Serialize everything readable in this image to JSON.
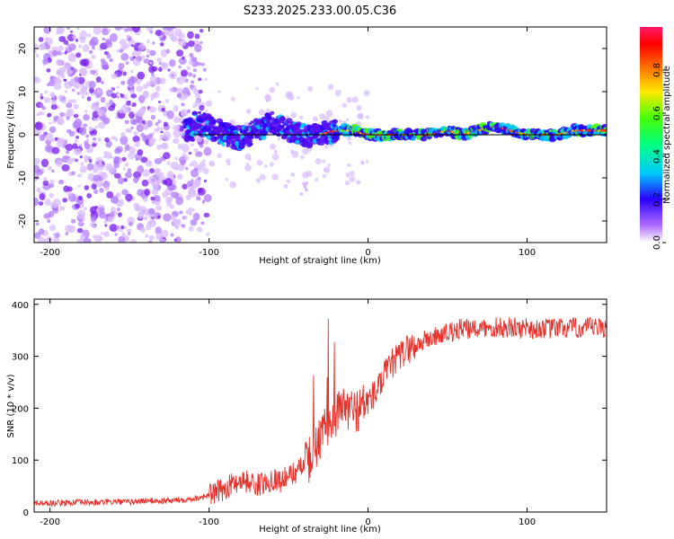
{
  "title": "S233.2025.233.00.05.C36",
  "chart_data": [
    {
      "type": "heatmap",
      "xlabel": "Height of straight line (km)",
      "ylabel": "Frequency (Hz)",
      "xlim": [
        -210,
        150
      ],
      "ylim": [
        -25,
        25
      ],
      "xticks": [
        -200,
        -100,
        0,
        100
      ],
      "yticks": [
        -20,
        -10,
        0,
        10,
        20
      ],
      "ridge": {
        "x": [
          -110,
          -100,
          -90,
          -80,
          -70,
          -60,
          -50,
          -40,
          -30,
          -20,
          -10,
          0,
          10,
          20,
          30,
          40,
          50,
          60,
          70,
          80,
          90,
          100,
          110,
          120,
          130,
          140,
          150
        ],
        "freq": [
          3,
          2,
          0,
          -1,
          1,
          3,
          1,
          0,
          0,
          1,
          1,
          0,
          0,
          0,
          0,
          0,
          1,
          0,
          1,
          2,
          1,
          0,
          0,
          0,
          1,
          1,
          1
        ]
      },
      "colorbar": {
        "label": "Normalized spectral amplitude",
        "range": [
          0,
          1
        ],
        "ticks": [
          "0.0",
          "0.2",
          "0.4",
          "0.6",
          "0.8"
        ]
      }
    },
    {
      "type": "line",
      "xlabel": "Height of straight line (km)",
      "ylabel": "SNR (10 * v/v)",
      "xlim": [
        -210,
        150
      ],
      "ylim": [
        0,
        410
      ],
      "xticks": [
        -200,
        -100,
        0,
        100
      ],
      "yticks": [
        0,
        100,
        200,
        300,
        400
      ],
      "color": "#e8302a",
      "series": [
        {
          "name": "SNR",
          "x": [
            -210,
            -200,
            -190,
            -180,
            -170,
            -160,
            -150,
            -140,
            -130,
            -120,
            -110,
            -100,
            -95,
            -90,
            -85,
            -80,
            -75,
            -70,
            -65,
            -60,
            -55,
            -50,
            -45,
            -40,
            -35,
            -30,
            -25,
            -20,
            -15,
            -10,
            -5,
            0,
            5,
            10,
            15,
            20,
            25,
            30,
            35,
            40,
            45,
            50,
            55,
            60,
            65,
            70,
            75,
            80,
            85,
            90,
            95,
            100,
            105,
            110,
            115,
            120,
            125,
            130,
            135,
            140,
            145,
            150
          ],
          "values": [
            18,
            17,
            18,
            19,
            18,
            20,
            19,
            22,
            21,
            23,
            26,
            32,
            38,
            45,
            55,
            62,
            58,
            52,
            55,
            65,
            60,
            70,
            78,
            90,
            110,
            140,
            170,
            190,
            200,
            195,
            200,
            215,
            230,
            260,
            285,
            300,
            315,
            320,
            330,
            335,
            340,
            345,
            350,
            355,
            348,
            355,
            352,
            356,
            354,
            357,
            352,
            358,
            350,
            355,
            352,
            356,
            353,
            355,
            352,
            356,
            354,
            355
          ]
        }
      ]
    }
  ]
}
